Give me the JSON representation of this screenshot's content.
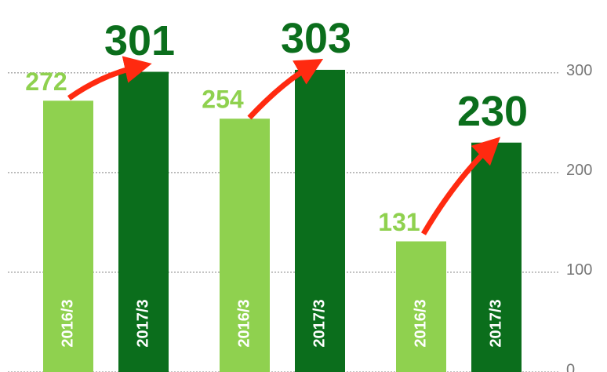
{
  "chart_data": {
    "type": "bar",
    "categories": [
      null,
      null,
      null
    ],
    "series": [
      {
        "name": "2016/3",
        "color": "#8fd14f",
        "values": [
          272,
          254,
          131
        ]
      },
      {
        "name": "2017/3",
        "color": "#0b6e1c",
        "values": [
          301,
          303,
          230
        ]
      }
    ],
    "ylim": [
      0,
      373
    ],
    "yticks": [
      0,
      100,
      200,
      300
    ],
    "grid": true
  }
}
